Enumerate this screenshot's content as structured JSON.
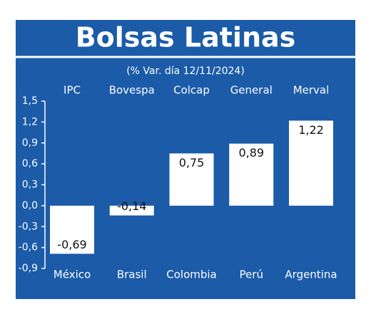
{
  "chart_data": {
    "type": "bar",
    "title": "Bolsas Latinas",
    "subtitle": "(% Var. día 12/11/2024)",
    "categories": [
      "México",
      "Brasil",
      "Colombia",
      "Perú",
      "Argentina"
    ],
    "index_names": [
      "IPC",
      "Bovespa",
      "Colcap",
      "General",
      "Merval"
    ],
    "values": [
      -0.69,
      -0.14,
      0.75,
      0.89,
      1.22
    ],
    "value_labels": [
      "-0,69",
      "-0,14",
      "0,75",
      "0,89",
      "1,22"
    ],
    "color": "#ffffff",
    "ylim": [
      -0.9,
      1.5
    ],
    "yticks": [
      {
        "value": -0.9,
        "label": "-0,9"
      },
      {
        "value": -0.6,
        "label": "-0,6"
      },
      {
        "value": -0.3,
        "label": "-0,3"
      },
      {
        "value": 0,
        "label": "0,0"
      },
      {
        "value": 0.3,
        "label": "0,3"
      },
      {
        "value": 0.6,
        "label": "0,6"
      },
      {
        "value": 0.9,
        "label": "0,9"
      },
      {
        "value": 1.2,
        "label": "1,2"
      },
      {
        "value": 1.5,
        "label": "1,5"
      }
    ],
    "grid": false
  }
}
